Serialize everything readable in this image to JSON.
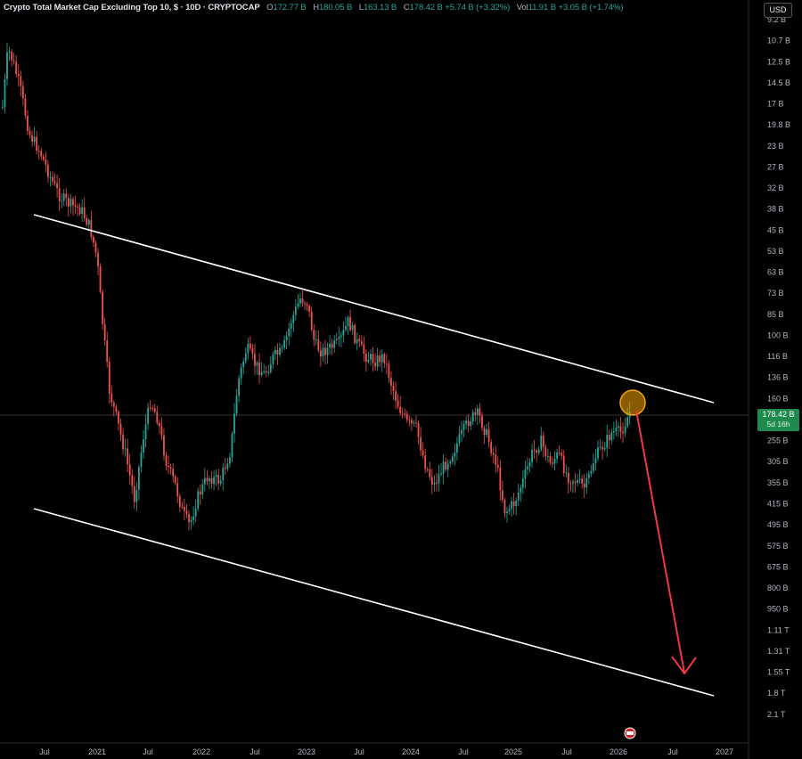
{
  "header": {
    "title": "Crypto Total Market Cap Excluding Top 10, $ · 10D · CRYPTOCAP",
    "open_label": "O",
    "open": "172.77 B",
    "high_label": "H",
    "high": "180.05 B",
    "low_label": "L",
    "low": "163.13 B",
    "close_label": "C",
    "close": "178.42 B",
    "change": "+5.74 B (+3.32%)",
    "vol_label": "Vol",
    "vol": "11.91 B",
    "vol_change": "+3.05 B (+1.74%)"
  },
  "currency_button": "USD",
  "price_tag": {
    "value": "178.42 B",
    "countdown": "5d 16h"
  },
  "colors": {
    "up": "#26a69a",
    "down": "#ef5350",
    "channel": "#ffffff",
    "arrow": "#f23645",
    "circle": "#f7a600"
  },
  "chart_data": {
    "type": "candlestick",
    "title": "Crypto Total Market Cap Excluding Top 10",
    "y_axis_inverted": true,
    "y_scale": "log",
    "y_ticks": [
      "9.2 B",
      "10.7 B",
      "12.5 B",
      "14.5 B",
      "17 B",
      "19.8 B",
      "23 B",
      "27 B",
      "32 B",
      "38 B",
      "45 B",
      "53 B",
      "63 B",
      "73 B",
      "85 B",
      "100 B",
      "116 B",
      "136 B",
      "160 B",
      "178.42 B",
      "215 B",
      "255 B",
      "305 B",
      "355 B",
      "415 B",
      "495 B",
      "575 B",
      "675 B",
      "800 B",
      "950 B",
      "1.11 T",
      "1.31 T",
      "1.55 T",
      "1.8 T",
      "2.1 T"
    ],
    "x_ticks": [
      "Jul",
      "2021",
      "Jul",
      "2022",
      "Jul",
      "2023",
      "Jul",
      "2024",
      "Jul",
      "2025",
      "Jul",
      "2026",
      "Jul",
      "2027"
    ],
    "key_points": [
      {
        "x": "2020-05",
        "y_label": "10.7 B"
      },
      {
        "x": "2021-01",
        "y_label": "45 B"
      },
      {
        "x": "2021-05",
        "y_label": "305 B"
      },
      {
        "x": "2021-12",
        "y_label": "495 B"
      },
      {
        "x": "2022-11",
        "y_label": "73 B"
      },
      {
        "x": "2023-06",
        "y_label": "85 B"
      },
      {
        "x": "2024-04",
        "y_label": "355 B"
      },
      {
        "x": "2025-04",
        "y_label": "415 B"
      },
      {
        "x": "2026-02",
        "y_label": "178.42 B"
      }
    ],
    "annotations": [
      "upper channel line",
      "lower channel line",
      "highlight circle at last candle",
      "projection arrow toward lower channel"
    ]
  }
}
